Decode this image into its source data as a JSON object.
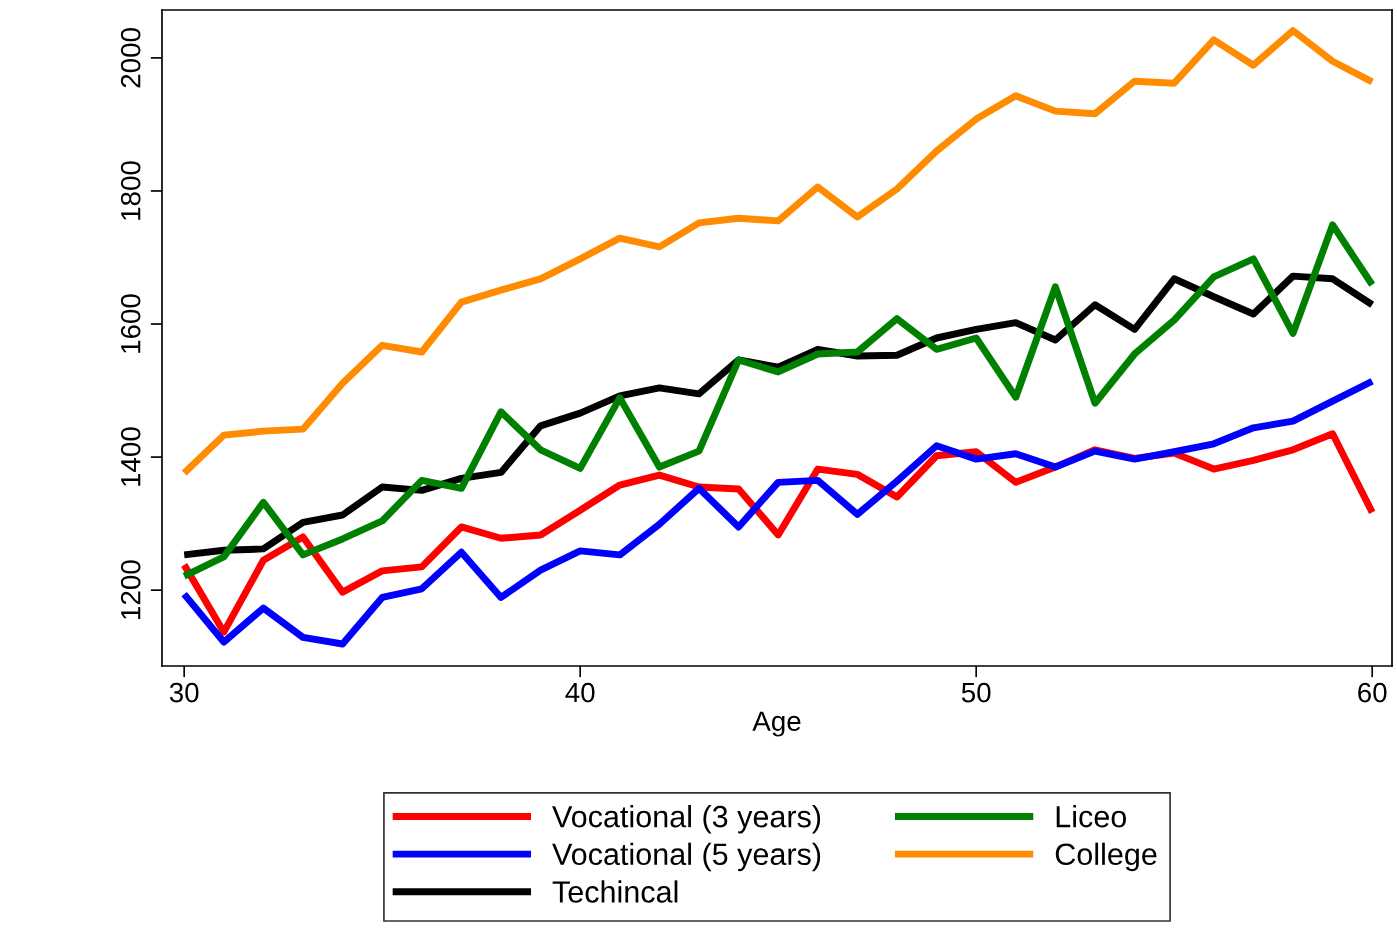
{
  "chart_data": {
    "type": "line",
    "xlabel": "Age",
    "x": [
      30,
      31,
      32,
      33,
      34,
      35,
      36,
      37,
      38,
      39,
      40,
      41,
      42,
      43,
      44,
      45,
      46,
      47,
      48,
      49,
      50,
      51,
      52,
      53,
      54,
      55,
      56,
      57,
      58,
      59,
      60
    ],
    "xlim": [
      29.44,
      60.5
    ],
    "ylim": [
      1086,
      2072
    ],
    "xticks": [
      30,
      40,
      50,
      60
    ],
    "yticks": [
      1200,
      1400,
      1600,
      1800,
      2000
    ],
    "grid": false,
    "legend": "bottom",
    "marker": "none",
    "line_style": "solid",
    "series": [
      {
        "name": "Vocational (3 years)",
        "color": "#ff0000",
        "values": [
          1238,
          1137,
          1245,
          1280,
          1197,
          1229,
          1235,
          1295,
          1278,
          1283,
          1320,
          1358,
          1373,
          1355,
          1352,
          1283,
          1382,
          1374,
          1340,
          1402,
          1408,
          1362,
          1385,
          1411,
          1398,
          1406,
          1382,
          1395,
          1411,
          1435,
          1317
        ]
      },
      {
        "name": "Vocational (5 years)",
        "color": "#0000ff",
        "values": [
          1194,
          1122,
          1173,
          1129,
          1119,
          1189,
          1202,
          1257,
          1189,
          1230,
          1259,
          1253,
          1299,
          1353,
          1295,
          1362,
          1365,
          1314,
          1364,
          1417,
          1397,
          1405,
          1385,
          1409,
          1397,
          1408,
          1420,
          1444,
          1454,
          1484,
          1514
        ]
      },
      {
        "name": "Techincal",
        "color": "#000000",
        "values": [
          1253,
          1260,
          1262,
          1302,
          1313,
          1355,
          1350,
          1368,
          1377,
          1447,
          1466,
          1492,
          1504,
          1495,
          1546,
          1535,
          1562,
          1552,
          1553,
          1579,
          1592,
          1602,
          1576,
          1629,
          1592,
          1668,
          1641,
          1615,
          1672,
          1668,
          1629
        ]
      },
      {
        "name": "Liceo",
        "color": "#008000",
        "values": [
          1221,
          1250,
          1332,
          1253,
          1277,
          1304,
          1365,
          1353,
          1468,
          1411,
          1383,
          1489,
          1385,
          1409,
          1546,
          1528,
          1555,
          1558,
          1608,
          1562,
          1579,
          1490,
          1656,
          1481,
          1555,
          1606,
          1671,
          1698,
          1586,
          1749,
          1659
        ]
      },
      {
        "name": "College",
        "color": "#ff8c00",
        "values": [
          1376,
          1433,
          1439,
          1442,
          1511,
          1568,
          1558,
          1633,
          1651,
          1668,
          1698,
          1729,
          1716,
          1752,
          1759,
          1755,
          1806,
          1761,
          1803,
          1860,
          1908,
          1943,
          1920,
          1916,
          1965,
          1962,
          2027,
          1989,
          2041,
          1995,
          1964
        ]
      }
    ]
  }
}
